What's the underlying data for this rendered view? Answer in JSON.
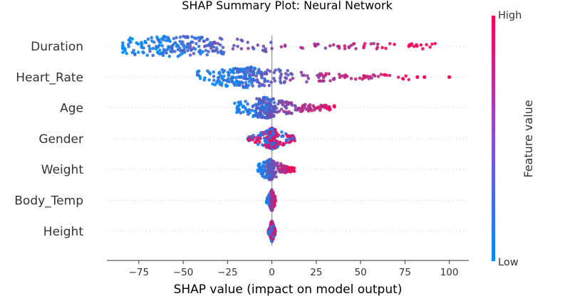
{
  "chart_data": {
    "type": "scatter",
    "title": "SHAP Summary Plot: Neural Network",
    "xlabel": "SHAP value (impact on model output)",
    "ylabel": "",
    "xlim": [
      -93,
      111
    ],
    "xticks": [
      -75,
      -50,
      -25,
      0,
      25,
      50,
      75,
      100
    ],
    "xtick_labels": [
      "−75",
      "−50",
      "−25",
      "0",
      "25",
      "50",
      "75",
      "100"
    ],
    "grid": false,
    "colorbar": {
      "label": "Feature value",
      "high_label": "High",
      "low_label": "Low",
      "low_color": "#008bfb",
      "high_color": "#ff0052"
    },
    "features": [
      {
        "name": "Duration",
        "min": -84,
        "max": 92,
        "mode": -55,
        "spread": 34,
        "corr": "positive",
        "outliers": []
      },
      {
        "name": "Heart_Rate",
        "min": -42,
        "max": 78,
        "mode": -15,
        "spread": 24,
        "corr": "positive",
        "outliers": [
          82,
          86,
          100
        ]
      },
      {
        "name": "Age",
        "min": -21,
        "max": 36,
        "mode": -4,
        "spread": 10,
        "corr": "positive",
        "outliers": []
      },
      {
        "name": "Gender",
        "min": -14,
        "max": 13,
        "mode": 0,
        "spread": 3,
        "corr": "mixed",
        "outliers": []
      },
      {
        "name": "Weight",
        "min": -8,
        "max": 13,
        "mode": -1,
        "spread": 2,
        "corr": "positive",
        "outliers": []
      },
      {
        "name": "Body_Temp",
        "min": -3,
        "max": 2,
        "mode": 0,
        "spread": 0.6,
        "corr": "positive",
        "outliers": []
      },
      {
        "name": "Height",
        "min": -2,
        "max": 2,
        "mode": 0,
        "spread": 0.6,
        "corr": "mixed",
        "outliers": []
      }
    ]
  }
}
